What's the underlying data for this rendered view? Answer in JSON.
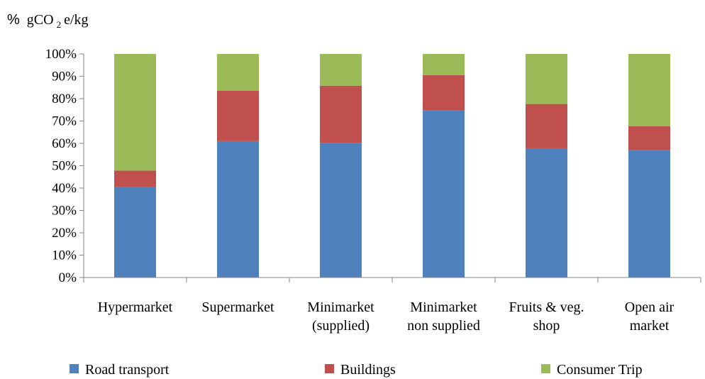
{
  "chart_data": {
    "type": "bar",
    "stacked": true,
    "ylabel_prefix": "%",
    "ylabel": "gCO2e/kg",
    "ylabel_parts": {
      "pre": "gCO",
      "sub": "2",
      "post": "e/kg"
    },
    "ylim": [
      0,
      100
    ],
    "yticks": [
      "0%",
      "10%",
      "20%",
      "30%",
      "40%",
      "50%",
      "60%",
      "70%",
      "80%",
      "90%",
      "100%"
    ],
    "grid": false,
    "legend_position": "bottom",
    "categories": [
      [
        "Hypermarket"
      ],
      [
        "Supermarket"
      ],
      [
        "Minimarket",
        "(supplied)"
      ],
      [
        "Minimarket",
        "non supplied"
      ],
      [
        "Fruits & veg.",
        "shop"
      ],
      [
        "Open air",
        "market"
      ]
    ],
    "series": [
      {
        "name": "Road transport",
        "color": "#4f81bd",
        "values": [
          40.5,
          61,
          60.2,
          74.8,
          57.8,
          56.9
        ]
      },
      {
        "name": "Buildings",
        "color": "#c0504d",
        "values": [
          7.3,
          22.5,
          25.6,
          15.7,
          19.8,
          10.8
        ]
      },
      {
        "name": "Consumer Trip",
        "color": "#9bbb59",
        "values": [
          52.2,
          16.5,
          14.2,
          9.5,
          22.4,
          32.3
        ]
      }
    ]
  }
}
